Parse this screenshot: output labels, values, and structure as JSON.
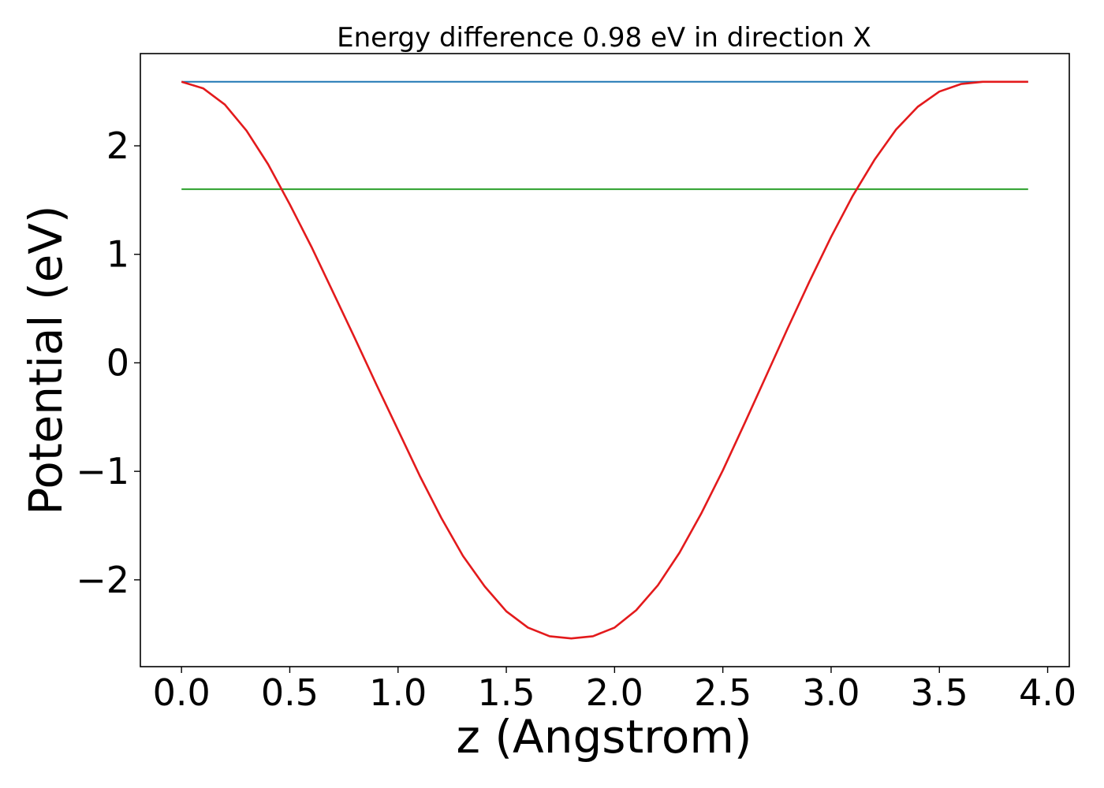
{
  "chart_data": {
    "type": "line",
    "title": "Energy difference 0.98 eV in direction X",
    "xlabel": "z (Angstrom)",
    "ylabel": "Potential (eV)",
    "xlim": [
      -0.19,
      4.1
    ],
    "ylim": [
      -2.8,
      2.85
    ],
    "xticks": [
      0.0,
      0.5,
      1.0,
      1.5,
      2.0,
      2.5,
      3.0,
      3.5,
      4.0
    ],
    "xtick_labels": [
      "0.0",
      "0.5",
      "1.0",
      "1.5",
      "2.0",
      "2.5",
      "3.0",
      "3.5",
      "4.0"
    ],
    "yticks": [
      -2,
      -1,
      0,
      1,
      2
    ],
    "ytick_labels": [
      "−2",
      "−1",
      "0",
      "1",
      "2"
    ],
    "grid": false,
    "series": [
      {
        "color": "#1f77b4",
        "x": [
          0.0,
          3.91
        ],
        "y": [
          2.59,
          2.59
        ]
      },
      {
        "color": "#2ca02c",
        "x": [
          0.0,
          3.91
        ],
        "y": [
          1.6,
          1.6
        ]
      },
      {
        "color": "#e31a1c",
        "x": [
          0.0,
          0.1,
          0.2,
          0.3,
          0.4,
          0.5,
          0.6,
          0.7,
          0.8,
          0.9,
          1.0,
          1.1,
          1.2,
          1.3,
          1.4,
          1.5,
          1.6,
          1.7,
          1.8,
          1.9,
          2.0,
          2.1,
          2.2,
          2.3,
          2.4,
          2.5,
          2.6,
          2.7,
          2.8,
          2.9,
          3.0,
          3.1,
          3.2,
          3.3,
          3.4,
          3.5,
          3.6,
          3.7,
          3.8,
          3.91
        ],
        "y": [
          2.59,
          2.53,
          2.38,
          2.14,
          1.83,
          1.46,
          1.07,
          0.65,
          0.23,
          -0.2,
          -0.62,
          -1.04,
          -1.43,
          -1.78,
          -2.06,
          -2.29,
          -2.44,
          -2.52,
          -2.54,
          -2.52,
          -2.44,
          -2.28,
          -2.05,
          -1.75,
          -1.39,
          -0.99,
          -0.56,
          -0.12,
          0.32,
          0.75,
          1.16,
          1.54,
          1.87,
          2.15,
          2.36,
          2.5,
          2.57,
          2.59,
          2.59,
          2.59
        ]
      }
    ]
  }
}
